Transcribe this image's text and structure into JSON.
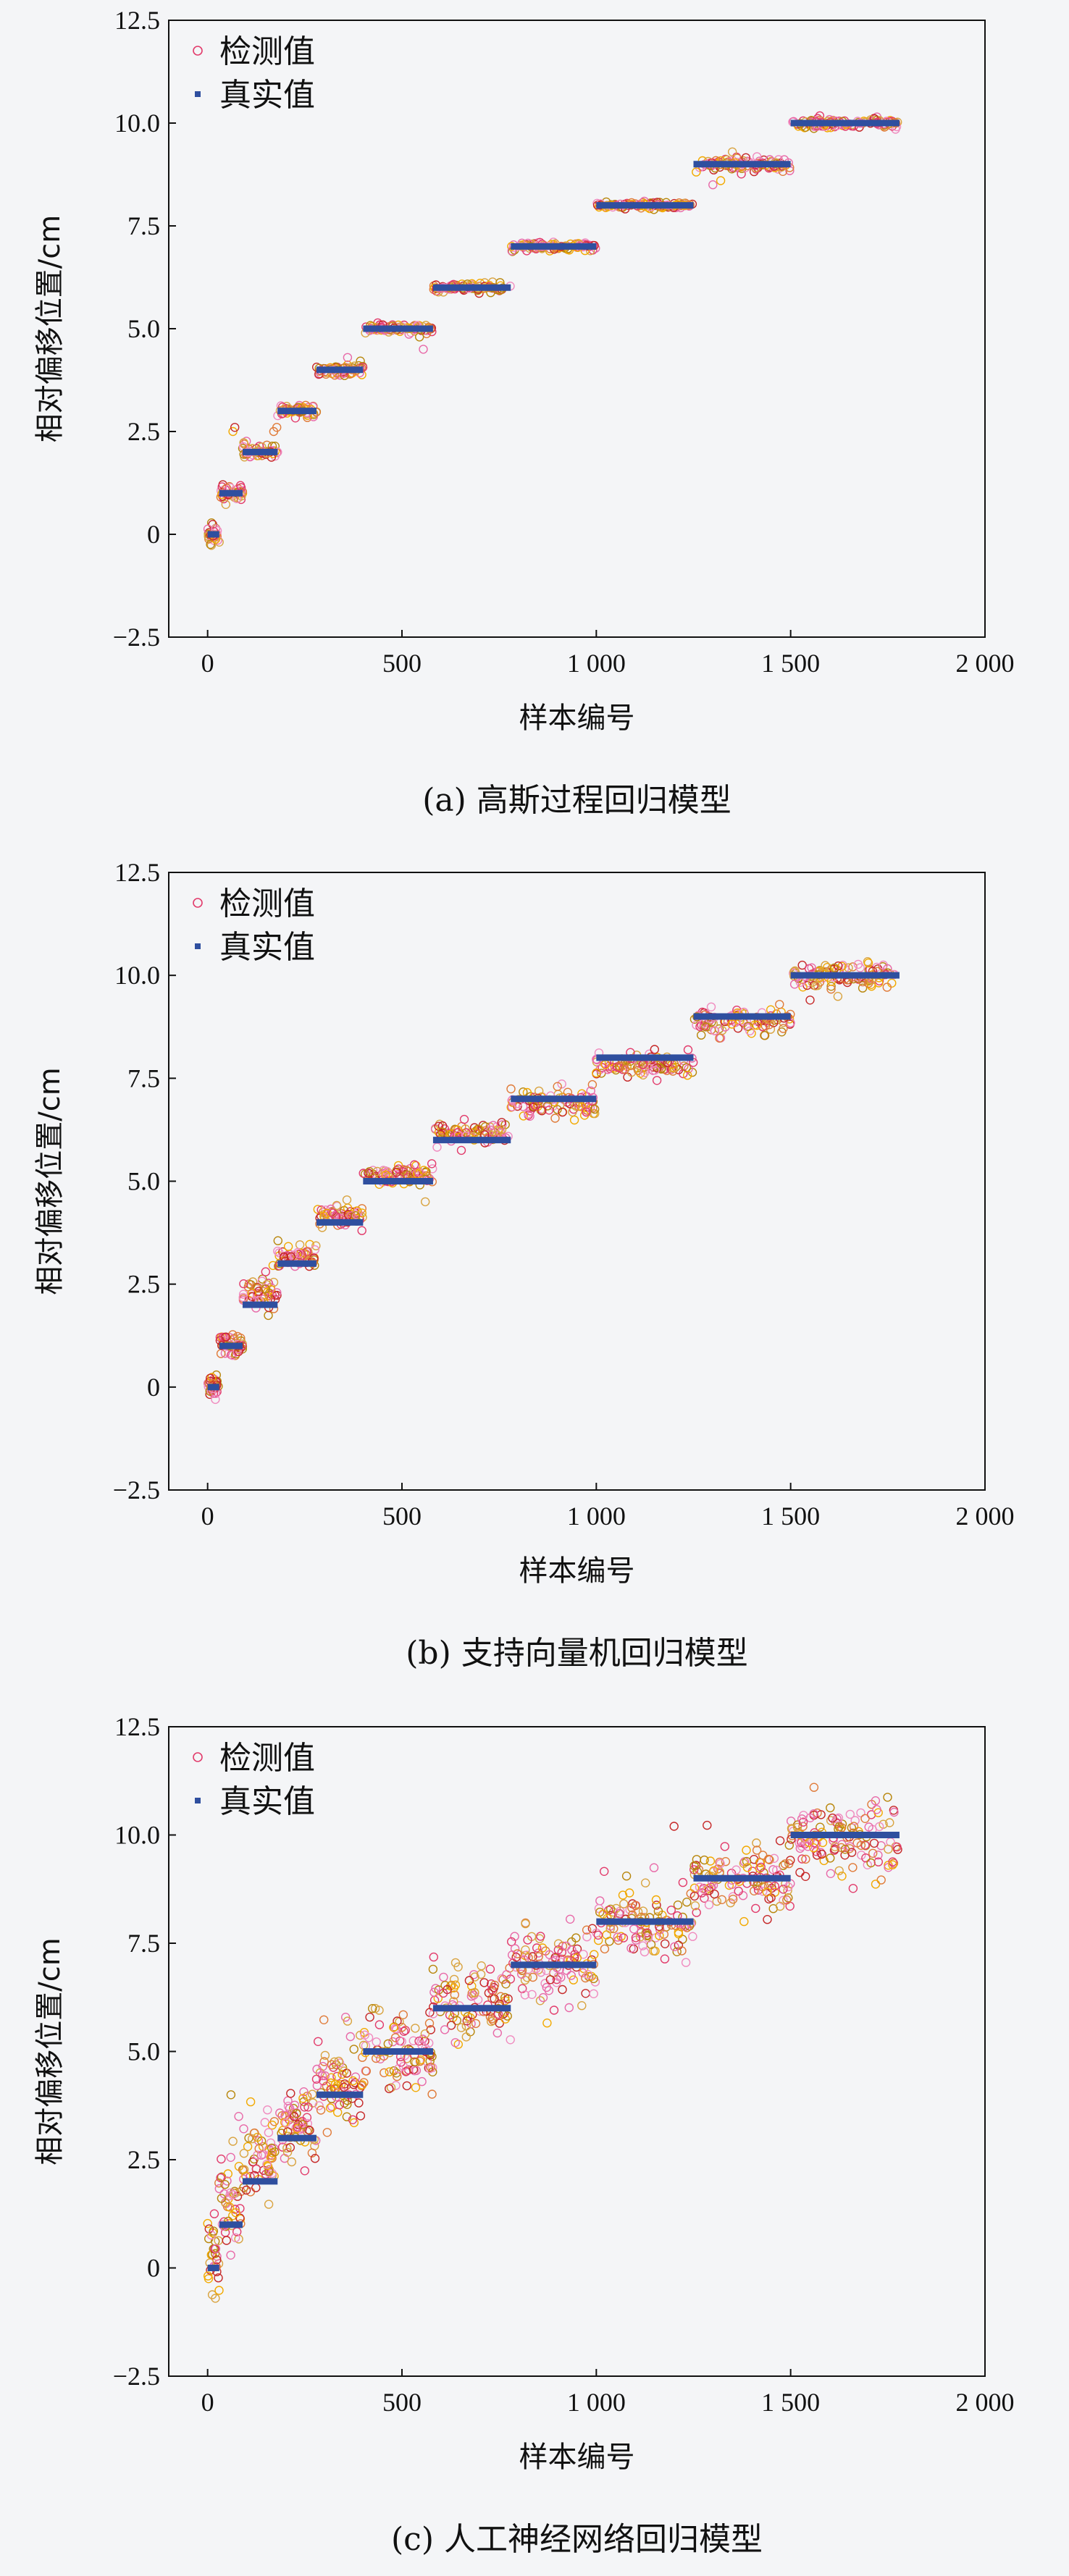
{
  "chart_data": [
    {
      "type": "scatter",
      "caption": "(a) 高斯过程回归模型",
      "xlabel": "样本编号",
      "ylabel": "相对偏移位置/cm",
      "xlim": [
        -100,
        2000
      ],
      "ylim": [
        -2.5,
        12.5
      ],
      "xticks": [
        0,
        500,
        1000,
        1500,
        2000
      ],
      "xtick_labels": [
        "0",
        "500",
        "1 000",
        "1 500",
        "2 000"
      ],
      "yticks": [
        -2.5,
        0,
        2.5,
        5.0,
        7.5,
        10.0,
        12.5
      ],
      "ytick_labels": [
        "−2.5",
        "0",
        "2.5",
        "5.0",
        "7.5",
        "10.0",
        "12.5"
      ],
      "legend": {
        "position": "top-left",
        "entries": [
          "检测值",
          "真实值"
        ]
      },
      "series": [
        {
          "name": "真实值",
          "kind": "segments",
          "segments": [
            [
              0,
              30,
              0
            ],
            [
              30,
              90,
              1
            ],
            [
              90,
              180,
              2
            ],
            [
              180,
              280,
              3
            ],
            [
              280,
              400,
              4
            ],
            [
              400,
              580,
              5
            ],
            [
              580,
              780,
              6
            ],
            [
              780,
              1000,
              7
            ],
            [
              1000,
              1250,
              8
            ],
            [
              1250,
              1500,
              9
            ],
            [
              1500,
              1780,
              10
            ]
          ]
        },
        {
          "name": "检测值",
          "kind": "points",
          "groups": [
            {
              "x": [
                0,
                30
              ],
              "center": 0,
              "spread": 0.12,
              "n": 30
            },
            {
              "x": [
                30,
                90
              ],
              "center": 1,
              "spread": 0.1,
              "n": 40
            },
            {
              "x": [
                90,
                180
              ],
              "center": 2,
              "spread": 0.08,
              "n": 50
            },
            {
              "x": [
                180,
                280
              ],
              "center": 3,
              "spread": 0.08,
              "n": 55
            },
            {
              "x": [
                280,
                400
              ],
              "center": 4,
              "spread": 0.07,
              "n": 60
            },
            {
              "x": [
                400,
                580
              ],
              "center": 5,
              "spread": 0.06,
              "n": 80
            },
            {
              "x": [
                580,
                780
              ],
              "center": 6,
              "spread": 0.05,
              "n": 80
            },
            {
              "x": [
                780,
                1000
              ],
              "center": 7,
              "spread": 0.05,
              "n": 90
            },
            {
              "x": [
                1000,
                1250
              ],
              "center": 8,
              "spread": 0.04,
              "n": 100
            },
            {
              "x": [
                1250,
                1500
              ],
              "center": 9,
              "spread": 0.08,
              "n": 100
            },
            {
              "x": [
                1500,
                1780
              ],
              "center": 10,
              "spread": 0.06,
              "n": 110
            }
          ],
          "outliers": [
            [
              65,
              2.5
            ],
            [
              70,
              2.6
            ],
            [
              170,
              2.5
            ],
            [
              178,
              2.6
            ],
            [
              360,
              4.3
            ],
            [
              555,
              4.5
            ],
            [
              545,
              4.8
            ],
            [
              1300,
              8.5
            ],
            [
              1320,
              8.6
            ],
            [
              1350,
              9.3
            ]
          ]
        }
      ]
    },
    {
      "type": "scatter",
      "caption": "(b) 支持向量机回归模型",
      "xlabel": "样本编号",
      "ylabel": "相对偏移位置/cm",
      "xlim": [
        -100,
        2000
      ],
      "ylim": [
        -2.5,
        12.5
      ],
      "xticks": [
        0,
        500,
        1000,
        1500,
        2000
      ],
      "xtick_labels": [
        "0",
        "500",
        "1 000",
        "1 500",
        "2 000"
      ],
      "yticks": [
        -2.5,
        0,
        2.5,
        5.0,
        7.5,
        10.0,
        12.5
      ],
      "ytick_labels": [
        "−2.5",
        "0",
        "2.5",
        "5.0",
        "7.5",
        "10.0",
        "12.5"
      ],
      "legend": {
        "position": "top-left",
        "entries": [
          "检测值",
          "真实值"
        ]
      },
      "series": [
        {
          "name": "真实值",
          "kind": "segments",
          "segments": [
            [
              0,
              30,
              0
            ],
            [
              30,
              90,
              1
            ],
            [
              90,
              180,
              2
            ],
            [
              180,
              280,
              3
            ],
            [
              280,
              400,
              4
            ],
            [
              400,
              580,
              5
            ],
            [
              580,
              780,
              6
            ],
            [
              780,
              1000,
              7
            ],
            [
              1000,
              1250,
              8
            ],
            [
              1250,
              1500,
              9
            ],
            [
              1500,
              1780,
              10
            ]
          ]
        },
        {
          "name": "检测值",
          "kind": "points",
          "groups": [
            {
              "x": [
                0,
                30
              ],
              "center": 0.05,
              "spread": 0.15,
              "n": 30
            },
            {
              "x": [
                30,
                90
              ],
              "center": 1.05,
              "spread": 0.15,
              "n": 40
            },
            {
              "x": [
                90,
                180
              ],
              "center": 2.3,
              "spread": 0.2,
              "n": 55
            },
            {
              "x": [
                180,
                280
              ],
              "center": 3.15,
              "spread": 0.15,
              "n": 60
            },
            {
              "x": [
                280,
                400
              ],
              "center": 4.15,
              "spread": 0.12,
              "n": 65
            },
            {
              "x": [
                400,
                580
              ],
              "center": 5.15,
              "spread": 0.12,
              "n": 85
            },
            {
              "x": [
                580,
                780
              ],
              "center": 6.15,
              "spread": 0.12,
              "n": 90
            },
            {
              "x": [
                780,
                1000
              ],
              "center": 6.9,
              "spread": 0.18,
              "n": 95
            },
            {
              "x": [
                1000,
                1250
              ],
              "center": 7.8,
              "spread": 0.12,
              "n": 105
            },
            {
              "x": [
                1250,
                1500
              ],
              "center": 8.9,
              "spread": 0.15,
              "n": 105
            },
            {
              "x": [
                1500,
                1780
              ],
              "center": 9.95,
              "spread": 0.15,
              "n": 115
            }
          ],
          "outliers": [
            [
              20,
              -0.3
            ],
            [
              560,
              4.5
            ],
            [
              1150,
              8.2
            ],
            [
              1550,
              9.4
            ],
            [
              1700,
              10.3
            ],
            [
              900,
              7.3
            ]
          ]
        }
      ]
    },
    {
      "type": "scatter",
      "caption": "(c) 人工神经网络回归模型",
      "xlabel": "样本编号",
      "ylabel": "相对偏移位置/cm",
      "xlim": [
        -100,
        2000
      ],
      "ylim": [
        -2.5,
        12.5
      ],
      "xticks": [
        0,
        500,
        1000,
        1500,
        2000
      ],
      "xtick_labels": [
        "0",
        "500",
        "1 000",
        "1 500",
        "2 000"
      ],
      "yticks": [
        -2.5,
        0,
        2.5,
        5.0,
        7.5,
        10.0,
        12.5
      ],
      "ytick_labels": [
        "−2.5",
        "0",
        "2.5",
        "5.0",
        "7.5",
        "10.0",
        "12.5"
      ],
      "legend": {
        "position": "top-left",
        "entries": [
          "检测值",
          "真实值"
        ]
      },
      "series": [
        {
          "name": "真实值",
          "kind": "segments",
          "segments": [
            [
              0,
              30,
              0
            ],
            [
              30,
              90,
              1
            ],
            [
              90,
              180,
              2
            ],
            [
              180,
              280,
              3
            ],
            [
              280,
              400,
              4
            ],
            [
              400,
              580,
              5
            ],
            [
              580,
              780,
              6
            ],
            [
              780,
              1000,
              7
            ],
            [
              1000,
              1250,
              8
            ],
            [
              1250,
              1500,
              9
            ],
            [
              1500,
              1780,
              10
            ]
          ]
        },
        {
          "name": "检测值",
          "kind": "points",
          "groups": [
            {
              "x": [
                0,
                30
              ],
              "center": 0.2,
              "spread": 0.5,
              "n": 30
            },
            {
              "x": [
                30,
                90
              ],
              "center": 1.5,
              "spread": 0.5,
              "n": 45
            },
            {
              "x": [
                90,
                180
              ],
              "center": 2.5,
              "spread": 0.45,
              "n": 60
            },
            {
              "x": [
                180,
                280
              ],
              "center": 3.3,
              "spread": 0.45,
              "n": 65
            },
            {
              "x": [
                280,
                400
              ],
              "center": 4.2,
              "spread": 0.5,
              "n": 75
            },
            {
              "x": [
                400,
                580
              ],
              "center": 5.0,
              "spread": 0.45,
              "n": 95
            },
            {
              "x": [
                580,
                780
              ],
              "center": 6.1,
              "spread": 0.45,
              "n": 100
            },
            {
              "x": [
                780,
                1000
              ],
              "center": 7.0,
              "spread": 0.4,
              "n": 110
            },
            {
              "x": [
                1000,
                1250
              ],
              "center": 8.0,
              "spread": 0.4,
              "n": 120
            },
            {
              "x": [
                1250,
                1500
              ],
              "center": 8.9,
              "spread": 0.4,
              "n": 120
            },
            {
              "x": [
                1500,
                1780
              ],
              "center": 9.9,
              "spread": 0.45,
              "n": 130
            }
          ],
          "outliers": [
            [
              60,
              4.0
            ],
            [
              80,
              3.5
            ],
            [
              20,
              -0.7
            ],
            [
              360,
              5.7
            ],
            [
              580,
              6.9
            ],
            [
              1200,
              10.2
            ],
            [
              1560,
              11.1
            ],
            [
              1380,
              8.0
            ],
            [
              1490,
              8.5
            ]
          ]
        }
      ]
    }
  ],
  "colors": {
    "true_value": "#2f4f9f",
    "point_palette": [
      "#e23b6b",
      "#f08bbf",
      "#f2a900",
      "#e07b39",
      "#c62828",
      "#d9a441",
      "#e86aa8",
      "#b8860b"
    ],
    "axis": "#111111",
    "background": "#f4f5f7"
  }
}
